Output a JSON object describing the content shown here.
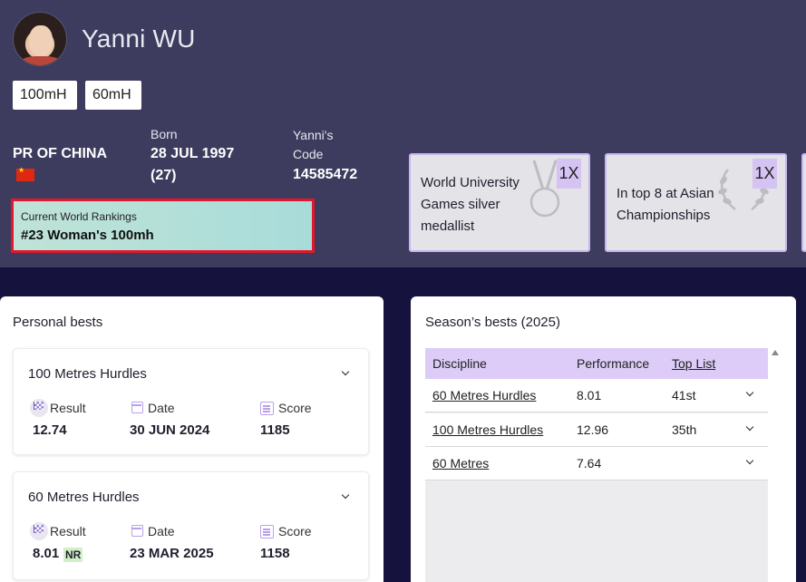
{
  "athlete": {
    "name": "Yanni WU",
    "disciplines": [
      "100mH",
      "60mH"
    ],
    "country": "PR OF CHINA",
    "born_label": "Born",
    "born_date": "28 JUL 1997",
    "age": "(27)",
    "code_label": "Yanni's Code",
    "code_label_1": "Yanni's",
    "code_label_2": "Code",
    "code": "14585472"
  },
  "ranking": {
    "label": "Current World Rankings",
    "value": "#23 Woman's 100mh"
  },
  "honours": [
    {
      "line1": "World University",
      "line2": "Games silver",
      "line3": "medallist",
      "count": "1X",
      "icon": "medal-icon"
    },
    {
      "line1": "In top 8 at Asian",
      "line2": "Championships",
      "count": "1X",
      "icon": "laurel-icon"
    }
  ],
  "personal_bests": {
    "title": "Personal bests",
    "field_labels": {
      "result": "Result",
      "date": "Date",
      "score": "Score"
    },
    "events": [
      {
        "name": "100 Metres Hurdles",
        "result": "12.74",
        "date": "30 JUN 2024",
        "score": "1185",
        "record": ""
      },
      {
        "name": "60 Metres Hurdles",
        "result": "8.01",
        "date": "23 MAR 2025",
        "score": "1158",
        "record": "NR"
      }
    ]
  },
  "season_bests": {
    "title": "Season’s bests (2025)",
    "columns": [
      "Discipline",
      "Performance",
      "Top List"
    ],
    "rows": [
      {
        "discipline": "60 Metres Hurdles",
        "performance": "8.01",
        "top_list": "41st"
      },
      {
        "discipline": "100 Metres Hurdles",
        "performance": "12.96",
        "top_list": "35th"
      },
      {
        "discipline": "60 Metres",
        "performance": "7.64",
        "top_list": ""
      }
    ]
  },
  "colors": {
    "header_bg": "#3d3c5e",
    "page_bg": "#15123d",
    "accent_lavender": "#dcccf7",
    "ranking_border": "#e3162b",
    "ranking_bg": "#a8dcd9"
  }
}
